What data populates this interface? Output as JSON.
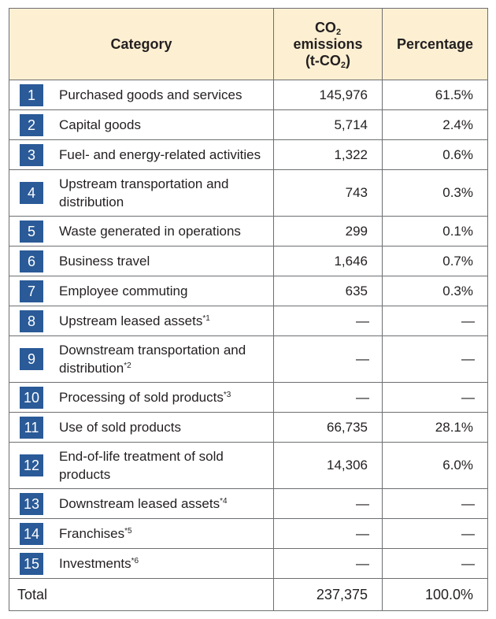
{
  "header": {
    "category": "Category",
    "co2_line1": "CO",
    "co2_sub": "2",
    "co2_line2": "emissions",
    "co2_unit_pre": "(t-CO",
    "co2_unit_sub": "2",
    "co2_unit_post": ")",
    "percentage": "Percentage"
  },
  "accent_color": "#2a5a97",
  "header_bg_color": "#fdf0d2",
  "rows": [
    {
      "num": "1",
      "label": "Purchased goods and services",
      "note": "",
      "emissions": "145,976",
      "percentage": "61.5%"
    },
    {
      "num": "2",
      "label": "Capital goods",
      "note": "",
      "emissions": "5,714",
      "percentage": "2.4%"
    },
    {
      "num": "3",
      "label": "Fuel- and energy-related activities",
      "note": "",
      "emissions": "1,322",
      "percentage": "0.6%"
    },
    {
      "num": "4",
      "label": "Upstream transportation and distribution",
      "note": "",
      "emissions": "743",
      "percentage": "0.3%"
    },
    {
      "num": "5",
      "label": "Waste generated in operations",
      "note": "",
      "emissions": "299",
      "percentage": "0.1%"
    },
    {
      "num": "6",
      "label": "Business travel",
      "note": "",
      "emissions": "1,646",
      "percentage": "0.7%"
    },
    {
      "num": "7",
      "label": "Employee commuting",
      "note": "",
      "emissions": "635",
      "percentage": "0.3%"
    },
    {
      "num": "8",
      "label": "Upstream leased assets",
      "note": "*1",
      "emissions": "—",
      "percentage": "—"
    },
    {
      "num": "9",
      "label": "Downstream transportation and distribution",
      "note": "*2",
      "emissions": "—",
      "percentage": "—"
    },
    {
      "num": "10",
      "label": "Processing of sold products",
      "note": "*3",
      "emissions": "—",
      "percentage": "—"
    },
    {
      "num": "11",
      "label": "Use of sold products",
      "note": "",
      "emissions": "66,735",
      "percentage": "28.1%"
    },
    {
      "num": "12",
      "label": "End-of-life treatment of sold products",
      "note": "",
      "emissions": "14,306",
      "percentage": "6.0%"
    },
    {
      "num": "13",
      "label": "Downstream leased assets",
      "note": "*4",
      "emissions": "—",
      "percentage": "—"
    },
    {
      "num": "14",
      "label": "Franchises",
      "note": "*5",
      "emissions": "—",
      "percentage": "—"
    },
    {
      "num": "15",
      "label": "Investments",
      "note": "*6",
      "emissions": "—",
      "percentage": "—"
    }
  ],
  "total": {
    "label": "Total",
    "emissions": "237,375",
    "percentage": "100.0%"
  }
}
